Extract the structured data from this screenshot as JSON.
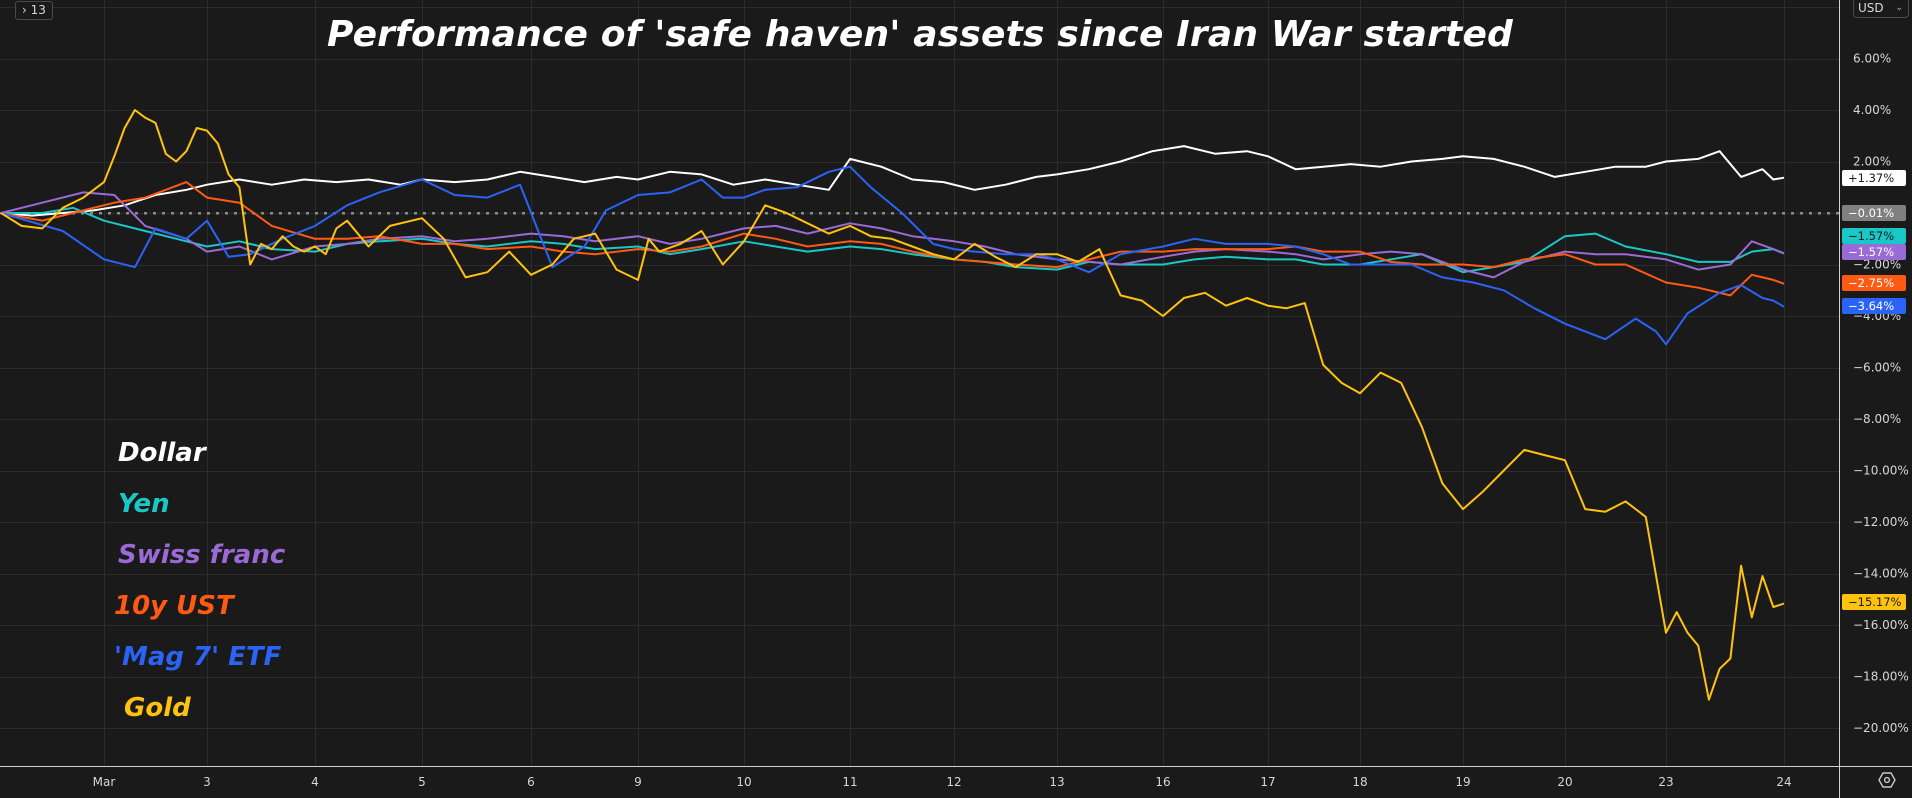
{
  "toolbar": {
    "collapse_label": "13",
    "currency": "USD"
  },
  "chart_data": {
    "type": "line",
    "title": "Performance of 'safe haven' assets since Iran War started",
    "xlabel": "",
    "ylabel": "",
    "x_tick_labels": [
      "Mar",
      "3",
      "4",
      "5",
      "6",
      "9",
      "10",
      "11",
      "12",
      "13",
      "16",
      "17",
      "18",
      "19",
      "20",
      "23",
      "24"
    ],
    "x_tick_values": [
      0,
      1,
      2,
      3,
      4,
      5,
      6,
      7,
      8,
      9,
      10,
      11,
      12,
      13,
      14,
      15,
      16.1
    ],
    "xlim": [
      -1,
      17.3
    ],
    "ylim": [
      -21.7,
      7.5
    ],
    "y_ticks": [
      6,
      4,
      2,
      -2,
      -4,
      -6,
      -8,
      -10,
      -12,
      -14,
      -16,
      -18,
      -20
    ],
    "y_tick_labels": [
      "6.00%",
      "4.00%",
      "2.00%",
      "−2.00%",
      "−4.00%",
      "−6.00%",
      "−8.00%",
      "−10.00%",
      "−12.00%",
      "−14.00%",
      "−16.00%",
      "−18.00%",
      "−20.00%"
    ],
    "baseline": {
      "value": -0.01,
      "label": "−0.01%",
      "color": "#808080"
    },
    "grid": true,
    "legend_position": "left",
    "series": [
      {
        "name": "Dollar",
        "color": "#ffffff",
        "last_label": "+1.37%",
        "label_text_color": "#1a1a1a",
        "x": [
          -1,
          -0.7,
          -0.4,
          -0.1,
          0.2,
          0.5,
          0.8,
          1.0,
          1.3,
          1.6,
          1.9,
          2.2,
          2.5,
          2.8,
          3.0,
          3.3,
          3.6,
          3.9,
          4.2,
          4.5,
          4.8,
          5.0,
          5.3,
          5.6,
          5.9,
          6.2,
          6.5,
          6.8,
          7.0,
          7.3,
          7.6,
          7.9,
          8.2,
          8.5,
          8.8,
          9.0,
          9.3,
          9.6,
          9.9,
          10.2,
          10.5,
          10.8,
          11.0,
          11.3,
          11.6,
          11.9,
          12.2,
          12.5,
          12.8,
          13.0,
          13.3,
          13.6,
          13.9,
          14.2,
          14.5,
          14.8,
          15.0,
          15.3,
          15.5,
          15.7,
          15.9,
          16.0,
          16.1
        ],
        "y": [
          0.0,
          -0.1,
          0.0,
          0.1,
          0.3,
          0.7,
          0.9,
          1.1,
          1.3,
          1.1,
          1.3,
          1.2,
          1.3,
          1.1,
          1.3,
          1.2,
          1.3,
          1.6,
          1.4,
          1.2,
          1.4,
          1.3,
          1.6,
          1.5,
          1.1,
          1.3,
          1.1,
          0.9,
          2.1,
          1.8,
          1.3,
          1.2,
          0.9,
          1.1,
          1.4,
          1.5,
          1.7,
          2.0,
          2.4,
          2.6,
          2.3,
          2.4,
          2.2,
          1.7,
          1.8,
          1.9,
          1.8,
          2.0,
          2.1,
          2.2,
          2.1,
          1.8,
          1.4,
          1.6,
          1.8,
          1.8,
          2.0,
          2.1,
          2.4,
          1.4,
          1.7,
          1.3,
          1.37
        ]
      },
      {
        "name": "Yen",
        "color": "#1ac6c6",
        "last_label": "−1.57%",
        "label_text_color": "#1a1a1a",
        "x": [
          -1,
          -0.6,
          -0.3,
          0,
          0.4,
          0.8,
          1.0,
          1.3,
          1.6,
          2.0,
          2.3,
          2.6,
          3.0,
          3.3,
          3.6,
          4.0,
          4.3,
          4.6,
          5.0,
          5.3,
          5.6,
          6.0,
          6.3,
          6.6,
          7.0,
          7.3,
          7.6,
          8.0,
          8.3,
          8.6,
          9.0,
          9.3,
          9.6,
          10.0,
          10.3,
          10.6,
          11.0,
          11.3,
          11.6,
          12.0,
          12.3,
          12.6,
          13.0,
          13.3,
          13.6,
          14.0,
          14.3,
          14.6,
          15.0,
          15.3,
          15.6,
          15.8,
          16.0,
          16.1
        ],
        "y": [
          0.0,
          0.0,
          0.2,
          -0.3,
          -0.7,
          -1.1,
          -1.3,
          -1.1,
          -1.4,
          -1.5,
          -1.2,
          -1.1,
          -1.0,
          -1.2,
          -1.3,
          -1.1,
          -1.2,
          -1.4,
          -1.3,
          -1.6,
          -1.4,
          -1.1,
          -1.3,
          -1.5,
          -1.3,
          -1.4,
          -1.6,
          -1.8,
          -1.9,
          -2.1,
          -2.2,
          -1.9,
          -2.0,
          -2.0,
          -1.8,
          -1.7,
          -1.8,
          -1.8,
          -2.0,
          -2.0,
          -1.8,
          -1.6,
          -2.3,
          -2.1,
          -1.9,
          -0.9,
          -0.8,
          -1.3,
          -1.6,
          -1.9,
          -1.9,
          -1.5,
          -1.4,
          -1.57
        ]
      },
      {
        "name": "Swiss franc",
        "color": "#9a6ad6",
        "last_label": "−1.57%",
        "label_text_color": "#ffffff",
        "x": [
          -1,
          -0.6,
          -0.2,
          0.1,
          0.4,
          0.8,
          1.0,
          1.3,
          1.6,
          2.0,
          2.3,
          2.6,
          3.0,
          3.3,
          3.6,
          4.0,
          4.3,
          4.6,
          5.0,
          5.3,
          5.6,
          6.0,
          6.3,
          6.6,
          7.0,
          7.3,
          7.6,
          8.0,
          8.3,
          8.6,
          9.0,
          9.3,
          9.6,
          10.0,
          10.3,
          10.6,
          11.0,
          11.3,
          11.6,
          12.0,
          12.3,
          12.6,
          13.0,
          13.3,
          13.6,
          14.0,
          14.3,
          14.6,
          15.0,
          15.3,
          15.6,
          15.8,
          16.0,
          16.1
        ],
        "y": [
          0.0,
          0.4,
          0.8,
          0.7,
          -0.5,
          -1.0,
          -1.5,
          -1.3,
          -1.8,
          -1.3,
          -1.2,
          -1.0,
          -0.9,
          -1.1,
          -1.0,
          -0.8,
          -0.9,
          -1.1,
          -0.9,
          -1.2,
          -1.0,
          -0.6,
          -0.5,
          -0.8,
          -0.4,
          -0.6,
          -0.9,
          -1.1,
          -1.3,
          -1.6,
          -1.8,
          -1.9,
          -2.0,
          -1.7,
          -1.5,
          -1.4,
          -1.5,
          -1.6,
          -1.8,
          -1.6,
          -1.5,
          -1.6,
          -2.2,
          -2.5,
          -1.9,
          -1.5,
          -1.6,
          -1.6,
          -1.8,
          -2.2,
          -2.0,
          -1.1,
          -1.4,
          -1.57
        ]
      },
      {
        "name": "10y UST",
        "color": "#ff5a14",
        "last_label": "−2.75%",
        "label_text_color": "#ffffff",
        "x": [
          -1,
          -0.6,
          -0.2,
          0.1,
          0.4,
          0.8,
          1.0,
          1.3,
          1.6,
          2.0,
          2.3,
          2.6,
          3.0,
          3.3,
          3.6,
          4.0,
          4.3,
          4.6,
          5.0,
          5.3,
          5.6,
          6.0,
          6.3,
          6.6,
          7.0,
          7.3,
          7.6,
          8.0,
          8.3,
          8.6,
          9.0,
          9.3,
          9.6,
          10.0,
          10.3,
          10.6,
          11.0,
          11.3,
          11.6,
          12.0,
          12.3,
          12.6,
          13.0,
          13.3,
          13.6,
          14.0,
          14.3,
          14.6,
          15.0,
          15.3,
          15.6,
          15.8,
          16.0,
          16.1
        ],
        "y": [
          0.0,
          -0.3,
          0.1,
          0.4,
          0.6,
          1.2,
          0.6,
          0.4,
          -0.5,
          -1.0,
          -1.0,
          -0.9,
          -1.2,
          -1.2,
          -1.4,
          -1.3,
          -1.5,
          -1.6,
          -1.4,
          -1.5,
          -1.3,
          -0.8,
          -1.0,
          -1.3,
          -1.1,
          -1.2,
          -1.5,
          -1.8,
          -1.9,
          -2.0,
          -2.1,
          -1.8,
          -1.5,
          -1.5,
          -1.4,
          -1.4,
          -1.4,
          -1.3,
          -1.5,
          -1.5,
          -1.9,
          -2.0,
          -2.0,
          -2.1,
          -1.8,
          -1.6,
          -2.0,
          -2.0,
          -2.7,
          -2.9,
          -3.2,
          -2.4,
          -2.6,
          -2.75
        ]
      },
      {
        "name": "'Mag 7' ETF",
        "color": "#2a63f5",
        "last_label": "−3.64%",
        "label_text_color": "#ffffff",
        "x": [
          -1,
          -0.4,
          0.0,
          0.3,
          0.5,
          0.8,
          1.0,
          1.2,
          1.4,
          1.7,
          2.0,
          2.3,
          2.6,
          3.0,
          3.3,
          3.6,
          3.9,
          4.2,
          4.5,
          4.7,
          5.0,
          5.3,
          5.6,
          5.8,
          6.0,
          6.2,
          6.5,
          6.8,
          7.0,
          7.2,
          7.5,
          7.8,
          8.0,
          8.2,
          8.5,
          8.8,
          9.0,
          9.3,
          9.6,
          10.0,
          10.3,
          10.6,
          11.0,
          11.3,
          11.6,
          11.9,
          12.2,
          12.5,
          12.8,
          13.1,
          13.4,
          13.7,
          14.0,
          14.4,
          14.7,
          14.9,
          15.0,
          15.2,
          15.5,
          15.7,
          15.9,
          16.0,
          16.1
        ],
        "y": [
          0.0,
          -0.7,
          -1.8,
          -2.1,
          -0.6,
          -1.0,
          -0.3,
          -1.7,
          -1.6,
          -1.0,
          -0.5,
          0.3,
          0.8,
          1.3,
          0.7,
          0.6,
          1.1,
          -2.1,
          -1.3,
          0.1,
          0.7,
          0.8,
          1.3,
          0.6,
          0.6,
          0.9,
          1.0,
          1.6,
          1.8,
          1.0,
          0.0,
          -1.2,
          -1.4,
          -1.5,
          -1.6,
          -1.6,
          -1.8,
          -2.3,
          -1.6,
          -1.3,
          -1.0,
          -1.2,
          -1.2,
          -1.3,
          -1.6,
          -2.0,
          -2.0,
          -2.0,
          -2.5,
          -2.7,
          -3.0,
          -3.7,
          -4.3,
          -4.9,
          -4.1,
          -4.6,
          -5.1,
          -3.9,
          -3.1,
          -2.8,
          -3.3,
          -3.4,
          -3.64
        ]
      },
      {
        "name": "Gold",
        "color": "#ffc20e",
        "last_label": "−15.17%",
        "label_text_color": "#1a1a1a",
        "x": [
          -1,
          -0.8,
          -0.6,
          -0.4,
          -0.2,
          0.0,
          0.1,
          0.2,
          0.3,
          0.4,
          0.5,
          0.6,
          0.7,
          0.8,
          0.9,
          1.0,
          1.1,
          1.2,
          1.3,
          1.4,
          1.5,
          1.6,
          1.7,
          1.8,
          1.9,
          2.0,
          2.1,
          2.2,
          2.3,
          2.5,
          2.7,
          3.0,
          3.2,
          3.4,
          3.6,
          3.8,
          4.0,
          4.2,
          4.4,
          4.6,
          4.8,
          5.0,
          5.1,
          5.2,
          5.4,
          5.6,
          5.8,
          6.0,
          6.2,
          6.4,
          6.6,
          6.8,
          7.0,
          7.2,
          7.4,
          7.6,
          7.8,
          8.0,
          8.2,
          8.4,
          8.6,
          8.8,
          9.0,
          9.2,
          9.4,
          9.6,
          9.8,
          10.0,
          10.2,
          10.4,
          10.6,
          10.8,
          11.0,
          11.2,
          11.4,
          11.6,
          11.8,
          12.0,
          12.2,
          12.4,
          12.6,
          12.8,
          13.0,
          13.2,
          13.4,
          13.6,
          13.8,
          14.0,
          14.2,
          14.4,
          14.6,
          14.8,
          15.0,
          15.1,
          15.2,
          15.3,
          15.4,
          15.5,
          15.6,
          15.7,
          15.8,
          15.9,
          16.0,
          16.1
        ],
        "y": [
          0.0,
          -0.5,
          -0.6,
          0.2,
          0.6,
          1.2,
          2.2,
          3.3,
          4.0,
          3.7,
          3.5,
          2.3,
          2.0,
          2.4,
          3.3,
          3.2,
          2.7,
          1.5,
          1.0,
          -2.0,
          -1.2,
          -1.4,
          -0.9,
          -1.3,
          -1.5,
          -1.3,
          -1.6,
          -0.6,
          -0.3,
          -1.3,
          -0.5,
          -0.2,
          -1.0,
          -2.5,
          -2.3,
          -1.5,
          -2.4,
          -2.0,
          -1.0,
          -0.8,
          -2.2,
          -2.6,
          -1.0,
          -1.5,
          -1.2,
          -0.7,
          -2.0,
          -1.1,
          0.3,
          0.0,
          -0.4,
          -0.8,
          -0.5,
          -0.9,
          -1.0,
          -1.3,
          -1.6,
          -1.8,
          -1.2,
          -1.7,
          -2.1,
          -1.6,
          -1.6,
          -1.9,
          -1.4,
          -3.2,
          -3.4,
          -4.0,
          -3.3,
          -3.1,
          -3.6,
          -3.3,
          -3.6,
          -3.7,
          -3.5,
          -5.9,
          -6.6,
          -7.0,
          -6.2,
          -6.6,
          -8.3,
          -10.5,
          -11.5,
          -10.8,
          -10.0,
          -9.2,
          -9.4,
          -9.6,
          -11.5,
          -11.6,
          -11.2,
          -11.8,
          -16.3,
          -15.5,
          -16.3,
          -16.8,
          -18.9,
          -17.7,
          -17.3,
          -13.7,
          -15.7,
          -14.1,
          -15.3,
          -15.17
        ]
      }
    ]
  }
}
